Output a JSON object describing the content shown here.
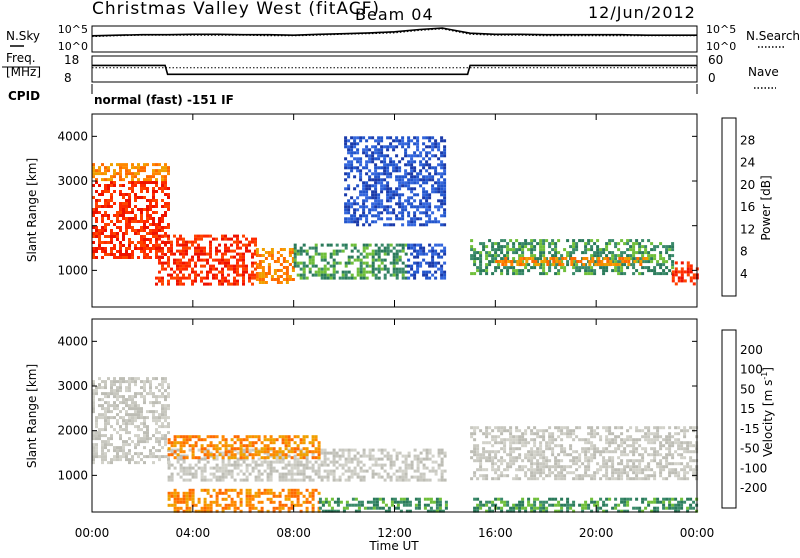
{
  "header": {
    "station": "Christmas Valley West (fitACF)",
    "beam": "Beam 04",
    "date": "12/Jun/2012"
  },
  "noise_panel": {
    "left_label": "N.Sky",
    "right_label": "N.Search",
    "left_ticks": [
      "10^5",
      "10^0"
    ],
    "right_ticks": [
      "10^5",
      "10^0"
    ]
  },
  "freq_panel": {
    "left_label_1": "Freq.",
    "left_label_2": "[MHz]",
    "right_label": "Nave",
    "left_ticks": [
      "18",
      "8"
    ],
    "right_ticks": [
      "60",
      "0"
    ]
  },
  "cpid": {
    "label": "CPID",
    "text": "normal (fast) -151 IF"
  },
  "x_axis": {
    "title": "Time UT",
    "ticks": [
      "00:00",
      "04:00",
      "08:00",
      "12:00",
      "16:00",
      "20:00",
      "00:00"
    ]
  },
  "chart_data": [
    {
      "type": "line",
      "title": "",
      "xlabel": "",
      "ylabel": "N.Sky",
      "y_scale": "log",
      "x_hours": [
        0,
        1,
        2,
        3,
        4,
        5,
        6,
        7,
        8,
        9,
        10,
        11,
        12,
        13,
        13.9,
        14.2,
        15,
        16,
        17,
        18,
        19,
        20,
        21,
        22,
        23,
        24
      ],
      "series": [
        {
          "name": "N.Sky",
          "values": [
            1500,
            2000,
            2500,
            2500,
            3000,
            3000,
            2500,
            2500,
            2000,
            3000,
            4000,
            6000,
            10000,
            30000,
            60000,
            30000,
            5000,
            3000,
            3000,
            2500,
            2500,
            2500,
            2500,
            2000,
            2000,
            2000
          ]
        },
        {
          "name": "N.Search",
          "values": [
            1000,
            1500,
            2000,
            2000,
            2000,
            2000,
            2000,
            1500,
            1500,
            2000,
            3000,
            4000,
            6000,
            20000,
            40000,
            20000,
            3000,
            2000,
            2000,
            1500,
            1500,
            1500,
            1500,
            1500,
            1500,
            1500
          ]
        }
      ],
      "ylim": [
        1,
        100000
      ]
    },
    {
      "type": "line",
      "title": "",
      "xlabel": "",
      "ylabel": "Freq. [MHz]",
      "x_hours": [
        0,
        2.9,
        3.0,
        13.9,
        14.0,
        14.9,
        15.0,
        24
      ],
      "series": [
        {
          "name": "Freq.",
          "values": [
            14.5,
            14.5,
            10.8,
            10.8,
            10.8,
            10.8,
            14.5,
            14.5
          ]
        },
        {
          "name": "Nave",
          "values": [
            33,
            33,
            33,
            33,
            33,
            33,
            33,
            33
          ]
        }
      ],
      "ylim": [
        8,
        18
      ]
    },
    {
      "type": "heatmap",
      "title": "",
      "xlabel": "",
      "ylabel": "Slant Range [km]",
      "colorbar_label": "Power [dB]",
      "colorbar_ticks": [
        4,
        8,
        12,
        16,
        20,
        24,
        28
      ],
      "colorbar_colors": [
        "#0000ff",
        "#2255cc",
        "#3a8a6a",
        "#6fbf3a",
        "#f0a000",
        "#ff6a00",
        "#ff3300",
        "#ee0000"
      ],
      "xlim": [
        0,
        24
      ],
      "ylim": [
        180,
        4500
      ],
      "y_ticks": [
        1000,
        2000,
        3000,
        4000
      ],
      "gaps_hours": [
        [
          14.0,
          15.0
        ]
      ],
      "regions": [
        {
          "t0": 0.0,
          "t1": 3.0,
          "r0": 1300,
          "r1": 3000,
          "level": "red"
        },
        {
          "t0": 0.0,
          "t1": 3.0,
          "r0": 3000,
          "r1": 3400,
          "level": "orange"
        },
        {
          "t0": 2.5,
          "t1": 6.5,
          "r0": 700,
          "r1": 1800,
          "level": "red"
        },
        {
          "t0": 6.5,
          "t1": 8.0,
          "r0": 700,
          "r1": 1500,
          "level": "orange"
        },
        {
          "t0": 8.0,
          "t1": 12.5,
          "r0": 800,
          "r1": 1600,
          "level": "green"
        },
        {
          "t0": 12.5,
          "t1": 14.0,
          "r0": 800,
          "r1": 1600,
          "level": "blue"
        },
        {
          "t0": 15.0,
          "t1": 23.0,
          "r0": 900,
          "r1": 1700,
          "level": "green"
        },
        {
          "t0": 16.0,
          "t1": 22.0,
          "r0": 1100,
          "r1": 1300,
          "level": "orange"
        },
        {
          "t0": 23.0,
          "t1": 24.0,
          "r0": 700,
          "r1": 1200,
          "level": "red"
        },
        {
          "t0": 10.0,
          "t1": 14.0,
          "r0": 2000,
          "r1": 4000,
          "level": "blue"
        }
      ]
    },
    {
      "type": "heatmap",
      "title": "",
      "xlabel": "Time UT",
      "ylabel": "Slant Range [km]",
      "colorbar_label": "Velocity [m s^-1]",
      "colorbar_ticks": [
        200,
        100,
        50,
        15,
        -15,
        -50,
        -100,
        -200
      ],
      "colorbar_colors": [
        "#1a3aaa",
        "#2a7a5a",
        "#40a040",
        "#70c040",
        "#c0c0b8",
        "#f0a000",
        "#ff8800",
        "#ff5500",
        "#ee1100"
      ],
      "xlim": [
        0,
        24
      ],
      "ylim": [
        180,
        4500
      ],
      "y_ticks": [
        1000,
        2000,
        3000,
        4000
      ],
      "gaps_hours": [
        [
          14.0,
          15.0
        ]
      ],
      "regions": [
        {
          "t0": 0.0,
          "t1": 3.0,
          "r0": 1300,
          "r1": 3200,
          "level": "gray"
        },
        {
          "t0": 3.0,
          "t1": 14.0,
          "r0": 900,
          "r1": 1600,
          "level": "gray"
        },
        {
          "t0": 15.0,
          "t1": 24.0,
          "r0": 900,
          "r1": 2100,
          "level": "gray"
        },
        {
          "t0": 3.0,
          "t1": 9.0,
          "r0": 1400,
          "r1": 1900,
          "level": "orange"
        },
        {
          "t0": 3.0,
          "t1": 9.0,
          "r0": 200,
          "r1": 700,
          "level": "orange"
        },
        {
          "t0": 9.0,
          "t1": 14.0,
          "r0": 200,
          "r1": 500,
          "level": "green"
        },
        {
          "t0": 15.0,
          "t1": 24.0,
          "r0": 200,
          "r1": 500,
          "level": "green"
        }
      ]
    }
  ]
}
